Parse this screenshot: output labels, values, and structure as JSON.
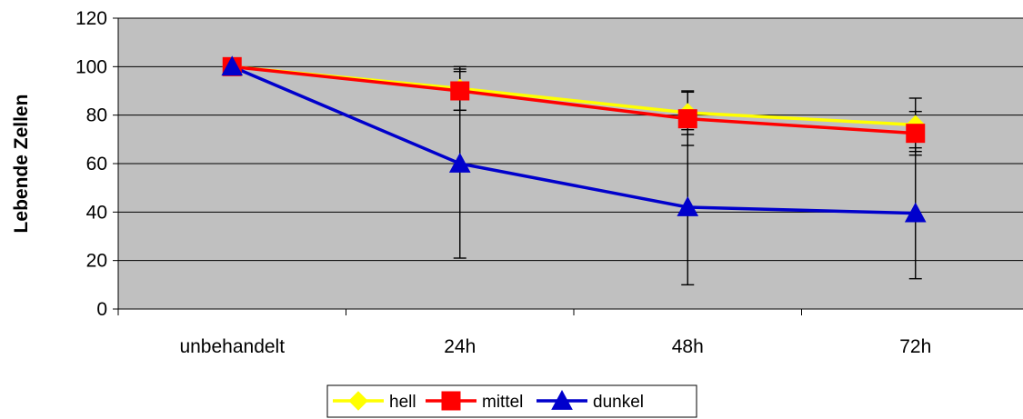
{
  "chart_data": {
    "type": "line",
    "title": "",
    "xlabel": "",
    "ylabel": "Lebende Zellen",
    "categories": [
      "unbehandelt",
      "24h",
      "48h",
      "72h"
    ],
    "ylim": [
      0,
      120
    ],
    "yticks": [
      0,
      20,
      40,
      60,
      80,
      100,
      120
    ],
    "grid": true,
    "legend_position": "bottom",
    "plot_background": "#c0c0c0",
    "series": [
      {
        "name": "hell",
        "color": "#ffff00",
        "marker": "diamond",
        "values": [
          100,
          91,
          81,
          76
        ],
        "error": [
          0,
          9,
          9,
          11
        ]
      },
      {
        "name": "mittel",
        "color": "#ff0000",
        "marker": "square",
        "values": [
          100,
          90,
          78.5,
          72.5
        ],
        "error": [
          0,
          8,
          11,
          9
        ]
      },
      {
        "name": "dunkel",
        "color": "#0000cc",
        "marker": "triangle",
        "values": [
          100,
          60,
          42,
          39.5
        ],
        "error": [
          0,
          39,
          32,
          27
        ]
      }
    ]
  }
}
